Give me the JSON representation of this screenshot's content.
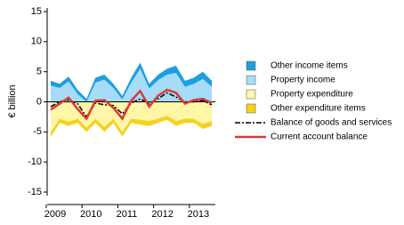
{
  "chart_data": {
    "type": "stacked_area",
    "y_label": "€ billion",
    "categories": [
      "2009",
      null,
      null,
      null,
      "2010",
      null,
      null,
      null,
      "2011",
      null,
      null,
      null,
      "2012",
      null,
      null,
      null,
      "2013",
      null,
      null
    ],
    "ylim": [
      -15,
      15
    ],
    "yticks": [
      -15,
      -10,
      -5,
      0,
      5,
      10,
      15
    ],
    "series": [
      {
        "name": "Other income items",
        "color": "#1d9ee0",
        "kind": "area",
        "values": [
          0.8,
          0.7,
          0.8,
          0.7,
          0.5,
          0.8,
          0.8,
          0.7,
          0.6,
          0.8,
          1,
          0.8,
          0.9,
          1,
          1.2,
          1,
          1,
          1.2,
          1
        ]
      },
      {
        "name": "Property income",
        "color": "#a6dcf7",
        "kind": "area",
        "values": [
          2.7,
          2.3,
          3.4,
          1.3,
          0,
          3.2,
          3.7,
          2.3,
          0.4,
          3.2,
          5.5,
          2.2,
          3.6,
          4.5,
          4.8,
          2.5,
          3,
          3.8,
          2.5
        ]
      },
      {
        "name": "Property expenditure",
        "color": "#fff6a8",
        "kind": "area",
        "values": [
          -5,
          -2.8,
          -3.3,
          -2.8,
          -4.3,
          -2.8,
          -4.2,
          -2.8,
          -5,
          -2.8,
          -3,
          -3.2,
          -2.8,
          -2.3,
          -3.2,
          -2.8,
          -2.8,
          -3.7,
          -3.2
        ]
      },
      {
        "name": "Other expenditure items",
        "color": "#f5d21c",
        "kind": "area",
        "values": [
          -0.8,
          -0.7,
          -0.7,
          -0.7,
          -0.7,
          -0.7,
          -0.8,
          -0.7,
          -0.8,
          -0.7,
          -0.8,
          -0.8,
          -0.7,
          -0.7,
          -0.8,
          -0.7,
          -0.7,
          -0.8,
          -0.8
        ]
      },
      {
        "name": "Balance of goods and services",
        "color": "#000000",
        "kind": "line",
        "dash": "6 2 2 2",
        "values": [
          -0.8,
          0,
          0.3,
          -0.3,
          -2.5,
          -0.2,
          -0.5,
          -0.6,
          -2,
          -0.2,
          0.5,
          -0.3,
          0.5,
          1.5,
          0.8,
          0,
          0,
          0.2,
          -0.5
        ]
      },
      {
        "name": "Current account balance",
        "color": "#d9393a",
        "kind": "line",
        "values": [
          -1.3,
          -0.3,
          0.7,
          -1.2,
          -2.8,
          0.2,
          0.3,
          -1,
          -2.8,
          0.2,
          1.8,
          -0.8,
          1,
          2,
          1.5,
          -0.3,
          0.3,
          0.5,
          -0.2
        ]
      }
    ]
  }
}
